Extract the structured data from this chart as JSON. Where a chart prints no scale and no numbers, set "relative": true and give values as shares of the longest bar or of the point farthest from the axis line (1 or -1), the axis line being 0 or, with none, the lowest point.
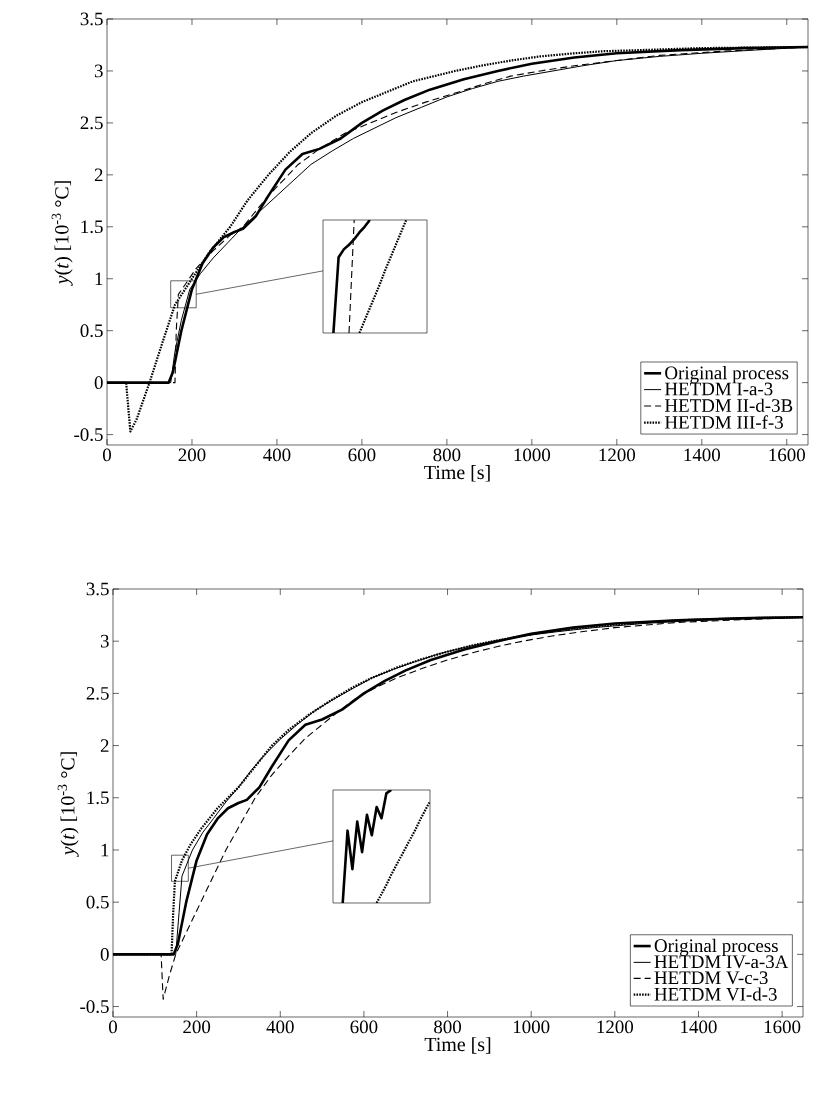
{
  "chart_data": [
    {
      "type": "line",
      "xlabel": "Time [s]",
      "ylabel": "*y*(*t*) [10$^{-3}$ °C]",
      "xlim": [
        0,
        1650
      ],
      "ylim": [
        -0.6,
        3.5
      ],
      "xticks": [
        0,
        200,
        400,
        600,
        800,
        1000,
        1200,
        1400,
        1600
      ],
      "yticks": [
        -0.5,
        0,
        0.5,
        1,
        1.5,
        2,
        2.5,
        3,
        3.5
      ],
      "grid": false,
      "legend": "bottom right",
      "series": [
        {
          "name": "Original process",
          "color": "#000000",
          "line_style": "solid",
          "x": [
            0,
            145,
            155,
            175,
            200,
            225,
            250,
            275,
            300,
            320,
            350,
            380,
            420,
            460,
            500,
            550,
            600,
            650,
            700,
            760,
            840,
            920,
            1000,
            1100,
            1200,
            1350,
            1500,
            1650
          ],
          "values": [
            0,
            0,
            0.1,
            0.5,
            0.9,
            1.15,
            1.3,
            1.4,
            1.45,
            1.48,
            1.6,
            1.8,
            2.05,
            2.2,
            2.25,
            2.35,
            2.5,
            2.62,
            2.72,
            2.82,
            2.92,
            3.0,
            3.07,
            3.13,
            3.17,
            3.2,
            3.22,
            3.23
          ]
        },
        {
          "name": "HETDM I-a-3",
          "color": "#000000",
          "line_style": "solid",
          "x": [
            0,
            150,
            160,
            175,
            195,
            220,
            250,
            285,
            320,
            360,
            400,
            440,
            480,
            530,
            580,
            630,
            680,
            740,
            800,
            860,
            920,
            980,
            1050,
            1120,
            1200,
            1300,
            1400,
            1520,
            1650
          ],
          "values": [
            0,
            0,
            0.3,
            0.6,
            0.9,
            1.05,
            1.2,
            1.35,
            1.5,
            1.65,
            1.8,
            1.95,
            2.1,
            2.23,
            2.35,
            2.45,
            2.55,
            2.65,
            2.75,
            2.83,
            2.9,
            2.95,
            3.0,
            3.05,
            3.1,
            3.14,
            3.17,
            3.2,
            3.23
          ]
        },
        {
          "name": "HETDM II-d-3B",
          "color": "#000000",
          "line_style": "dashed",
          "x": [
            0,
            160,
            163,
            168,
            185,
            210,
            250,
            290,
            320,
            350,
            380,
            420,
            450,
            500,
            560,
            620,
            680,
            750,
            830,
            890,
            950,
            1020,
            1100,
            1200,
            1300,
            1450,
            1650
          ],
          "values": [
            0,
            0,
            0.5,
            0.85,
            0.95,
            1.1,
            1.27,
            1.42,
            1.5,
            1.65,
            1.8,
            1.97,
            2.1,
            2.25,
            2.4,
            2.5,
            2.6,
            2.7,
            2.8,
            2.88,
            2.95,
            3.0,
            3.05,
            3.1,
            3.15,
            3.19,
            3.23
          ]
        },
        {
          "name": "HETDM III-f-3",
          "color": "#000000",
          "line_style": "dotted",
          "x": [
            0,
            45,
            55,
            70,
            100,
            130,
            160,
            200,
            240,
            290,
            330,
            380,
            430,
            480,
            540,
            600,
            660,
            720,
            770,
            820,
            880,
            950,
            1020,
            1100,
            1170,
            1250,
            1400,
            1650
          ],
          "values": [
            0,
            0,
            -0.47,
            -0.35,
            0,
            0.38,
            0.75,
            1.0,
            1.25,
            1.5,
            1.75,
            2.0,
            2.22,
            2.4,
            2.57,
            2.7,
            2.8,
            2.9,
            2.95,
            3.0,
            3.05,
            3.1,
            3.14,
            3.17,
            3.19,
            3.2,
            3.22,
            3.23
          ]
        }
      ]
    },
    {
      "type": "line",
      "xlabel": "Time [s]",
      "ylabel": "*y*(*t*) [10$^{-3}$ °C]",
      "xlim": [
        0,
        1650
      ],
      "ylim": [
        -0.6,
        3.5
      ],
      "xticks": [
        0,
        200,
        400,
        600,
        800,
        1000,
        1200,
        1400,
        1600
      ],
      "yticks": [
        -0.5,
        0,
        0.5,
        1,
        1.5,
        2,
        2.5,
        3,
        3.5
      ],
      "grid": false,
      "legend": "bottom right",
      "series": [
        {
          "name": "Original process",
          "color": "#000000",
          "line_style": "solid",
          "x": [
            0,
            145,
            155,
            175,
            200,
            225,
            250,
            275,
            300,
            320,
            350,
            380,
            420,
            460,
            500,
            550,
            600,
            650,
            700,
            760,
            840,
            920,
            1000,
            1100,
            1200,
            1350,
            1500,
            1650
          ],
          "values": [
            0,
            0,
            0.1,
            0.5,
            0.9,
            1.15,
            1.3,
            1.4,
            1.45,
            1.48,
            1.6,
            1.8,
            2.05,
            2.2,
            2.25,
            2.35,
            2.5,
            2.62,
            2.72,
            2.82,
            2.92,
            3.0,
            3.07,
            3.13,
            3.17,
            3.2,
            3.22,
            3.23
          ]
        },
        {
          "name": "HETDM IV-a-3A",
          "color": "#000000",
          "line_style": "solid",
          "x": [
            0,
            150,
            158,
            165,
            170,
            190,
            215,
            240,
            270,
            300,
            330,
            360,
            400,
            440,
            485,
            530,
            575,
            620,
            670,
            720,
            780,
            850,
            910,
            980,
            1060,
            1150,
            1270,
            1400,
            1650
          ],
          "values": [
            0,
            0,
            0.4,
            0.75,
            0.8,
            1.0,
            1.17,
            1.3,
            1.46,
            1.6,
            1.76,
            1.9,
            2.06,
            2.2,
            2.34,
            2.45,
            2.55,
            2.65,
            2.73,
            2.8,
            2.88,
            2.95,
            3.0,
            3.05,
            3.09,
            3.13,
            3.17,
            3.2,
            3.23
          ]
        },
        {
          "name": "HETDM V-c-3",
          "color": "#000000",
          "line_style": "dashed",
          "x": [
            0,
            115,
            120,
            135,
            150,
            180,
            210,
            240,
            270,
            305,
            340,
            380,
            420,
            460,
            500,
            540,
            580,
            630,
            680,
            740,
            800,
            860,
            920,
            980,
            1050,
            1120,
            1200,
            1350,
            1650
          ],
          "values": [
            0,
            0,
            -0.43,
            -0.2,
            0,
            0.25,
            0.5,
            0.75,
            1.0,
            1.25,
            1.5,
            1.72,
            1.9,
            2.07,
            2.2,
            2.33,
            2.45,
            2.56,
            2.65,
            2.74,
            2.82,
            2.89,
            2.95,
            3.0,
            3.05,
            3.09,
            3.13,
            3.18,
            3.23
          ]
        },
        {
          "name": "HETDM VI-d-3",
          "color": "#000000",
          "line_style": "dotted",
          "x": [
            0,
            140,
            144,
            148,
            165,
            185,
            210,
            250,
            300,
            340,
            380,
            420,
            470,
            520,
            570,
            620,
            680,
            740,
            800,
            870,
            950,
            1020,
            1100,
            1200,
            1350,
            1500,
            1650
          ],
          "values": [
            0,
            0,
            0.4,
            0.7,
            0.9,
            1.05,
            1.2,
            1.4,
            1.6,
            1.8,
            2.0,
            2.15,
            2.3,
            2.43,
            2.55,
            2.65,
            2.75,
            2.83,
            2.9,
            2.97,
            3.03,
            3.08,
            3.12,
            3.16,
            3.2,
            3.22,
            3.23
          ]
        }
      ]
    },
    {
      "type": "line",
      "relative": true,
      "categories": [
        null,
        null,
        null,
        null,
        null,
        null,
        null,
        null,
        null,
        null,
        null,
        null,
        null,
        null,
        null,
        null,
        null,
        null,
        null,
        null,
        null
      ],
      "series": [
        {
          "color": "#000000",
          "line_style": "solid",
          "values": [
            null,
            null,
            0,
            0.67,
            0.74,
            0.78,
            0.83,
            0.89,
            0.94,
            1.0,
            null,
            null,
            null,
            null,
            null,
            null,
            null,
            null,
            null,
            null,
            null
          ]
        },
        {
          "color": "#000000",
          "line_style": "dashed",
          "values": [
            null,
            null,
            null,
            null,
            null,
            0,
            1,
            null,
            null,
            null,
            null,
            null,
            null,
            null,
            null,
            null,
            null,
            null,
            null,
            null,
            null
          ]
        },
        {
          "color": "#000000",
          "line_style": "dotted",
          "values": [
            null,
            null,
            null,
            null,
            null,
            null,
            null,
            0,
            0.11,
            0.22,
            0.33,
            0.44,
            0.56,
            0.67,
            0.78,
            0.89,
            1.0,
            null,
            null,
            null,
            null
          ]
        }
      ]
    },
    {
      "type": "line",
      "relative": true,
      "categories": [
        null,
        null,
        null,
        null,
        null,
        null,
        null,
        null,
        null,
        null,
        null,
        null,
        null,
        null,
        null,
        null,
        null,
        null,
        null,
        null,
        null
      ],
      "series": [
        {
          "color": "#000000",
          "line_style": "solid",
          "values": [
            null,
            null,
            0,
            0.64,
            0.3,
            0.72,
            0.45,
            0.78,
            0.6,
            0.85,
            0.75,
            0.97,
            1.0,
            null,
            null,
            null,
            null,
            null,
            null,
            null,
            null
          ]
        },
        {
          "color": "#000000",
          "line_style": "dotted",
          "values": [
            null,
            null,
            null,
            null,
            null,
            null,
            null,
            null,
            null,
            0,
            0.08,
            0.16,
            0.25,
            0.33,
            0.41,
            0.49,
            0.57,
            0.65,
            0.74,
            0.82,
            0.9
          ]
        }
      ]
    }
  ]
}
